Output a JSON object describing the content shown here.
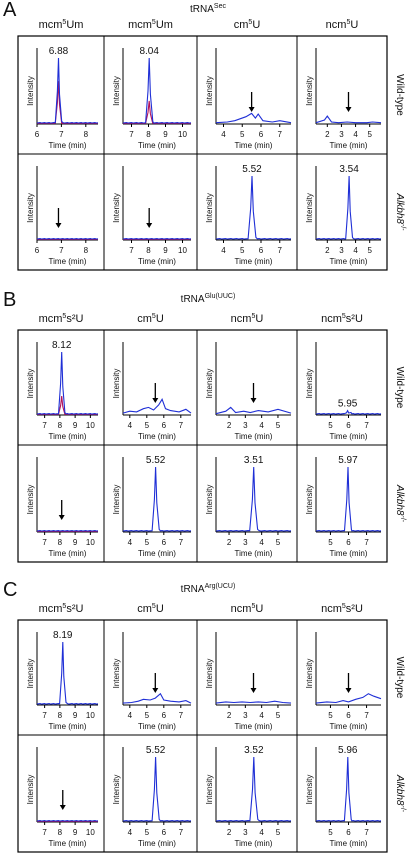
{
  "colors": {
    "trace_blue": "#1f2fd6",
    "trace_red": "#b4125a",
    "box": "#000000",
    "arrow": "#000000"
  },
  "chart_data": {
    "type": "line",
    "axis_label_y": "Intensity",
    "axis_label_x": "Time (min)",
    "row_labels": [
      "Wild-type",
      "Alkbh8",
      "-/-"
    ],
    "grid": false,
    "panels": [
      {
        "letter": "A",
        "trna": "tRNA",
        "trna_sup": "Sec",
        "columns": [
          {
            "header": "mcm",
            "header_sup": "5",
            "header_tail": "Um",
            "xlim": [
              6,
              8.5
            ],
            "ticks": [
              6,
              7,
              8
            ],
            "cells": [
              {
                "peak": {
                  "x": 6.88,
                  "y": 1.0,
                  "label": "6.88"
                },
                "red_peak": {
                  "x": 6.88,
                  "y": 0.65
                }
              },
              {
                "arrow_x": 6.88
              }
            ]
          },
          {
            "header": "mcm",
            "header_sup": "5",
            "header_tail": "Um",
            "xlim": [
              6.5,
              10.5
            ],
            "ticks": [
              7,
              8,
              9,
              10
            ],
            "cells": [
              {
                "peak": {
                  "x": 8.04,
                  "y": 1.0,
                  "label": "8.04"
                },
                "red_peak": {
                  "x": 8.04,
                  "y": 0.35
                }
              },
              {
                "arrow_x": 8.04
              }
            ]
          },
          {
            "header": "cm",
            "header_sup": "5",
            "header_tail": "U",
            "xlim": [
              3.6,
              7.6
            ],
            "ticks": [
              4,
              5,
              6,
              7
            ],
            "cells": [
              {
                "noise": [
                  [
                    3.6,
                    0.02
                  ],
                  [
                    4.2,
                    0.03
                  ],
                  [
                    4.6,
                    0.05
                  ],
                  [
                    4.9,
                    0.08
                  ],
                  [
                    5.2,
                    0.11
                  ],
                  [
                    5.5,
                    0.16
                  ],
                  [
                    5.7,
                    0.09
                  ],
                  [
                    5.85,
                    0.15
                  ],
                  [
                    6.1,
                    0.05
                  ],
                  [
                    6.6,
                    0.03
                  ],
                  [
                    7.0,
                    0.05
                  ],
                  [
                    7.6,
                    0.02
                  ]
                ],
                "arrow_x": 5.5
              },
              {
                "peak": {
                  "x": 5.52,
                  "y": 1.0,
                  "label": "5.52"
                }
              }
            ]
          },
          {
            "header": "ncm",
            "header_sup": "5",
            "header_tail": "U",
            "xlim": [
              1.2,
              5.8
            ],
            "ticks": [
              2,
              3,
              4,
              5
            ],
            "cells": [
              {
                "noise": [
                  [
                    1.2,
                    0.02
                  ],
                  [
                    1.8,
                    0.06
                  ],
                  [
                    2.0,
                    0.12
                  ],
                  [
                    2.3,
                    0.03
                  ],
                  [
                    2.8,
                    0.02
                  ],
                  [
                    3.4,
                    0.03
                  ],
                  [
                    4.0,
                    0.02
                  ],
                  [
                    4.8,
                    0.02
                  ],
                  [
                    5.2,
                    0.03
                  ],
                  [
                    5.8,
                    0.02
                  ]
                ],
                "arrow_x": 3.5
              },
              {
                "peak": {
                  "x": 3.54,
                  "y": 1.0,
                  "label": "3.54"
                }
              }
            ]
          }
        ]
      },
      {
        "letter": "B",
        "trna": "tRNA",
        "trna_sup": "Glu(UUC)",
        "columns": [
          {
            "header": "mcm",
            "header_sup": "5",
            "header_tail": "s²U",
            "xlim": [
              6.5,
              10.5
            ],
            "ticks": [
              7,
              8,
              9,
              10
            ],
            "cells": [
              {
                "peak": {
                  "x": 8.12,
                  "y": 1.0,
                  "label": "8.12"
                },
                "red_peak": {
                  "x": 8.12,
                  "y": 0.3
                }
              },
              {
                "arrow_x": 8.12
              }
            ]
          },
          {
            "header": "cm",
            "header_sup": "5",
            "header_tail": "U",
            "xlim": [
              3.6,
              7.6
            ],
            "ticks": [
              4,
              5,
              6,
              7
            ],
            "cells": [
              {
                "noise": [
                  [
                    3.6,
                    0.03
                  ],
                  [
                    4.0,
                    0.06
                  ],
                  [
                    4.4,
                    0.05
                  ],
                  [
                    4.8,
                    0.1
                  ],
                  [
                    5.1,
                    0.12
                  ],
                  [
                    5.4,
                    0.08
                  ],
                  [
                    5.7,
                    0.16
                  ],
                  [
                    5.9,
                    0.25
                  ],
                  [
                    6.1,
                    0.1
                  ],
                  [
                    6.4,
                    0.07
                  ],
                  [
                    6.9,
                    0.05
                  ],
                  [
                    7.3,
                    0.09
                  ],
                  [
                    7.6,
                    0.03
                  ]
                ],
                "arrow_x": 5.5
              },
              {
                "peak": {
                  "x": 5.52,
                  "y": 1.0,
                  "label": "5.52"
                }
              }
            ]
          },
          {
            "header": "ncm",
            "header_sup": "5",
            "header_tail": "U",
            "xlim": [
              1.2,
              5.8
            ],
            "ticks": [
              2,
              3,
              4,
              5
            ],
            "cells": [
              {
                "noise": [
                  [
                    1.2,
                    0.02
                  ],
                  [
                    1.8,
                    0.06
                  ],
                  [
                    2.1,
                    0.12
                  ],
                  [
                    2.4,
                    0.04
                  ],
                  [
                    2.9,
                    0.06
                  ],
                  [
                    3.3,
                    0.04
                  ],
                  [
                    3.8,
                    0.07
                  ],
                  [
                    4.4,
                    0.05
                  ],
                  [
                    5.0,
                    0.09
                  ],
                  [
                    5.8,
                    0.03
                  ]
                ],
                "arrow_x": 3.5
              },
              {
                "peak": {
                  "x": 3.51,
                  "y": 1.0,
                  "label": "3.51"
                }
              }
            ]
          },
          {
            "header": "ncm",
            "header_sup": "5",
            "header_tail": "s²U",
            "xlim": [
              4.2,
              7.8
            ],
            "ticks": [
              5,
              6,
              7
            ],
            "cells": [
              {
                "peak": {
                  "x": 5.95,
                  "y": 0.07,
                  "label": "5.95"
                }
              },
              {
                "peak": {
                  "x": 5.97,
                  "y": 1.0,
                  "label": "5.97"
                }
              }
            ]
          }
        ]
      },
      {
        "letter": "C",
        "trna": "tRNA",
        "trna_sup": "Arg(UCU)",
        "columns": [
          {
            "header": "mcm",
            "header_sup": "5",
            "header_tail": "s²U",
            "xlim": [
              6.5,
              10.5
            ],
            "ticks": [
              7,
              8,
              9,
              10
            ],
            "cells": [
              {
                "peak": {
                  "x": 8.19,
                  "y": 1.0,
                  "label": "8.19"
                }
              },
              {
                "arrow_x": 8.19
              }
            ]
          },
          {
            "header": "cm",
            "header_sup": "5",
            "header_tail": "U",
            "xlim": [
              3.6,
              7.6
            ],
            "ticks": [
              4,
              5,
              6,
              7
            ],
            "cells": [
              {
                "noise": [
                  [
                    3.6,
                    0.03
                  ],
                  [
                    4.1,
                    0.04
                  ],
                  [
                    4.5,
                    0.06
                  ],
                  [
                    4.8,
                    0.09
                  ],
                  [
                    5.2,
                    0.08
                  ],
                  [
                    5.5,
                    0.11
                  ],
                  [
                    5.8,
                    0.18
                  ],
                  [
                    6.0,
                    0.08
                  ],
                  [
                    6.4,
                    0.06
                  ],
                  [
                    6.9,
                    0.05
                  ],
                  [
                    7.3,
                    0.07
                  ],
                  [
                    7.6,
                    0.03
                  ]
                ],
                "arrow_x": 5.5
              },
              {
                "peak": {
                  "x": 5.52,
                  "y": 1.0,
                  "label": "5.52"
                }
              }
            ]
          },
          {
            "header": "ncm",
            "header_sup": "5",
            "header_tail": "U",
            "xlim": [
              1.2,
              5.8
            ],
            "ticks": [
              2,
              3,
              4,
              5
            ],
            "cells": [
              {
                "noise": [
                  [
                    1.2,
                    0.03
                  ],
                  [
                    1.8,
                    0.05
                  ],
                  [
                    2.3,
                    0.04
                  ],
                  [
                    2.8,
                    0.05
                  ],
                  [
                    3.3,
                    0.04
                  ],
                  [
                    3.8,
                    0.05
                  ],
                  [
                    4.3,
                    0.04
                  ],
                  [
                    4.8,
                    0.06
                  ],
                  [
                    5.3,
                    0.04
                  ],
                  [
                    5.8,
                    0.03
                  ]
                ],
                "arrow_x": 3.5
              },
              {
                "peak": {
                  "x": 3.52,
                  "y": 1.0,
                  "label": "3.52"
                }
              }
            ]
          },
          {
            "header": "ncm",
            "header_sup": "5",
            "header_tail": "s²U",
            "xlim": [
              4.2,
              7.8
            ],
            "ticks": [
              5,
              6,
              7
            ],
            "cells": [
              {
                "noise": [
                  [
                    4.2,
                    0.03
                  ],
                  [
                    4.8,
                    0.05
                  ],
                  [
                    5.3,
                    0.04
                  ],
                  [
                    5.7,
                    0.07
                  ],
                  [
                    6.0,
                    0.05
                  ],
                  [
                    6.4,
                    0.09
                  ],
                  [
                    6.8,
                    0.12
                  ],
                  [
                    7.1,
                    0.18
                  ],
                  [
                    7.4,
                    0.14
                  ],
                  [
                    7.8,
                    0.1
                  ]
                ],
                "arrow_x": 6.0
              },
              {
                "peak": {
                  "x": 5.96,
                  "y": 1.0,
                  "label": "5.96"
                }
              }
            ]
          }
        ]
      }
    ]
  }
}
